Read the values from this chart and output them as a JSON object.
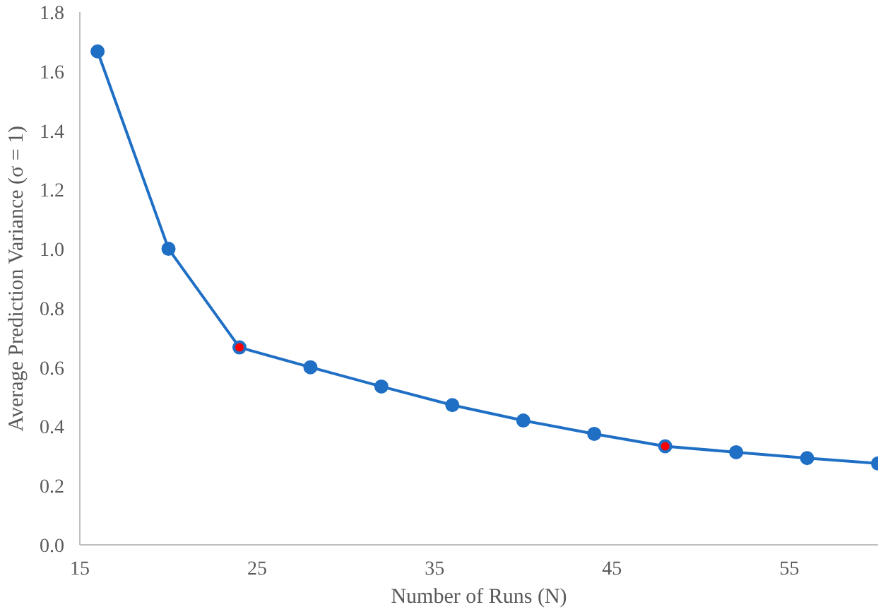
{
  "chart_data": {
    "type": "line",
    "xlabel": "Number of Runs (N)",
    "ylabel": "Average Prediction Variance (σ = 1)",
    "xlim": [
      15,
      60
    ],
    "xticks": [
      15,
      25,
      35,
      45,
      55
    ],
    "ylim": [
      0,
      1.8
    ],
    "yticks": [
      {
        "value": 0,
        "label": "0.0"
      },
      {
        "value": 0.2,
        "label": "0.2"
      },
      {
        "value": 0.4,
        "label": "0.4"
      },
      {
        "value": 0.6,
        "label": "0.6"
      },
      {
        "value": 0.8,
        "label": "0.8"
      },
      {
        "value": 1.0,
        "label": "1.0"
      },
      {
        "value": 1.2,
        "label": "1.2"
      },
      {
        "value": 1.4,
        "label": "1.4"
      },
      {
        "value": 1.6,
        "label": "1.6"
      },
      {
        "value": 1.8,
        "label": "1.8"
      }
    ],
    "grid": false,
    "marker": "circle",
    "series": [
      {
        "color": "#1f6fc5",
        "x": [
          16,
          20,
          24,
          28,
          32,
          36,
          40,
          44,
          48,
          52,
          56,
          60
        ],
        "values": [
          1.667,
          1.0,
          0.667,
          0.6,
          0.535,
          0.472,
          0.42,
          0.375,
          0.333,
          0.313,
          0.293,
          0.275
        ]
      },
      {
        "type": "scatter",
        "color": "#ff0000",
        "x": [
          24,
          48
        ],
        "values": [
          0.667,
          0.333
        ]
      }
    ]
  }
}
